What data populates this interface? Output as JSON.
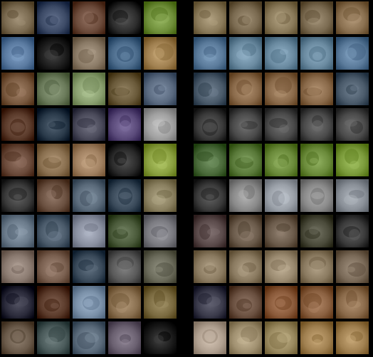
{
  "figure": {
    "panels": [
      {
        "name": "left-sample-grid",
        "rows": 10,
        "cols": 5,
        "palette": [
          [
            "#7a6a50",
            "#3c4a66",
            "#6b4a3a",
            "#2c2c2c",
            "#6f8f3a"
          ],
          [
            "#5a7aa0",
            "#1c1c1c",
            "#8a7a66",
            "#4a6a8a",
            "#a08050"
          ],
          [
            "#7a5a40",
            "#6a7a5a",
            "#8aa070",
            "#6a5a3a",
            "#5a6a80"
          ],
          [
            "#5a3a2a",
            "#2a3a4a",
            "#4a4a5a",
            "#5a4a7a",
            "#a0a0a0"
          ],
          [
            "#6a4a3a",
            "#8a7050",
            "#a08060",
            "#2a2a2a",
            "#8aa040"
          ],
          [
            "#3a3a3a",
            "#6a5040",
            "#5a6a7a",
            "#3a4a5a",
            "#8a8060"
          ],
          [
            "#6a7a8a",
            "#4a5a6a",
            "#8a90a0",
            "#4a5a3a",
            "#7a7a80"
          ],
          [
            "#8a7a70",
            "#7a6050",
            "#3a4a5a",
            "#5a5a5a",
            "#6a6a5a"
          ],
          [
            "#2a2a3a",
            "#5a3a2a",
            "#7a90a8",
            "#8a7050",
            "#7a6a40"
          ],
          [
            "#6a5a4a",
            "#4a5a5a",
            "#5a6a7a",
            "#6a6070",
            "#1a1a1a"
          ]
        ]
      },
      {
        "name": "right-sample-grid",
        "rows": 10,
        "cols": 5,
        "palette": [
          [
            "#8a7a5a",
            "#7a6a50",
            "#8a7a5a",
            "#7a6a50",
            "#8a7050"
          ],
          [
            "#5a7a9a",
            "#6a8aa0",
            "#6a8aa0",
            "#6a8aa0",
            "#5a7a9a"
          ],
          [
            "#4a5a6a",
            "#8a6a4a",
            "#8a6a4a",
            "#8a6a4a",
            "#4a5a6a"
          ],
          [
            "#3a3a3a",
            "#4a4a4a",
            "#4a4a4a",
            "#4a4a4a",
            "#4a4a4a"
          ],
          [
            "#4a6a3a",
            "#5a7a3a",
            "#6a8a3a",
            "#6a8a3a",
            "#7a9a3a"
          ],
          [
            "#3a3a3a",
            "#8a8a8a",
            "#9aa0a8",
            "#8a8a8a",
            "#8a9098"
          ],
          [
            "#5a4a4a",
            "#6a5a4a",
            "#6a5a4a",
            "#4a4a3a",
            "#3a3a3a"
          ],
          [
            "#8a7a60",
            "#8a7a60",
            "#9a8a70",
            "#8a7a60",
            "#7a6a58"
          ],
          [
            "#3a3a4a",
            "#6a5040",
            "#8a5a3a",
            "#8a6040",
            "#8a6a4a"
          ],
          [
            "#b0a090",
            "#a09070",
            "#9a8a60",
            "#a08050",
            "#a08050"
          ]
        ]
      }
    ]
  }
}
